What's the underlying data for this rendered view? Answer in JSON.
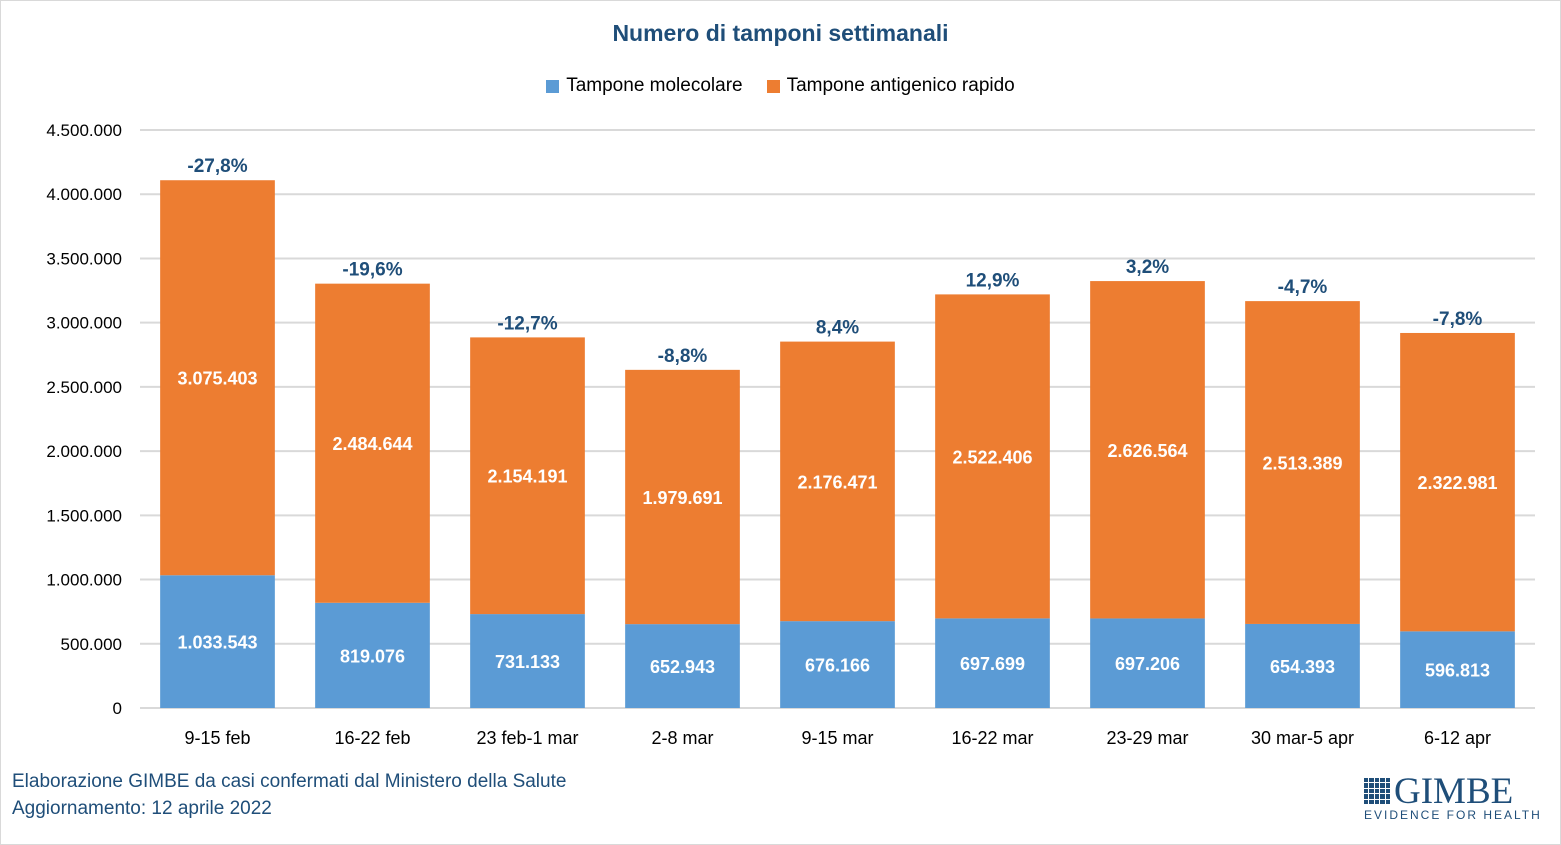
{
  "chart_data": {
    "type": "bar",
    "stacked": true,
    "title": "Numero di tamponi settimanali",
    "xlabel": "",
    "ylabel": "",
    "ylim": [
      0,
      4500000
    ],
    "yticks": [
      0,
      500000,
      1000000,
      1500000,
      2000000,
      2500000,
      3000000,
      3500000,
      4000000,
      4500000
    ],
    "ytick_labels": [
      "0",
      "500.000",
      "1.000.000",
      "1.500.000",
      "2.000.000",
      "2.500.000",
      "3.000.000",
      "3.500.000",
      "4.000.000",
      "4.500.000"
    ],
    "grid": true,
    "legend_position": "top-center",
    "categories": [
      "9-15 feb",
      "16-22 feb",
      "23 feb-1 mar",
      "2-8 mar",
      "9-15 mar",
      "16-22 mar",
      "23-29 mar",
      "30 mar-5 apr",
      "6-12 apr"
    ],
    "series": [
      {
        "name": "Tampone molecolare",
        "color": "#5b9bd5",
        "values": [
          1033543,
          819076,
          731133,
          652943,
          676166,
          697699,
          697206,
          654393,
          596813
        ],
        "labels": [
          "1.033.543",
          "819.076",
          "731.133",
          "652.943",
          "676.166",
          "697.699",
          "697.206",
          "654.393",
          "596.813"
        ]
      },
      {
        "name": "Tampone antigenico rapido",
        "color": "#ed7d31",
        "values": [
          3075403,
          2484644,
          2154191,
          1979691,
          2176471,
          2522406,
          2626564,
          2513389,
          2322981
        ],
        "labels": [
          "3.075.403",
          "2.484.644",
          "2.154.191",
          "1.979.691",
          "2.176.471",
          "2.522.406",
          "2.626.564",
          "2.513.389",
          "2.322.981"
        ]
      }
    ],
    "annotations": {
      "description": "Weekly percentage change in total tests",
      "color": "#1f4e79",
      "values": [
        "-27,8%",
        "-19,6%",
        "-12,7%",
        "-8,8%",
        "8,4%",
        "12,9%",
        "3,2%",
        "-4,7%",
        "-7,8%"
      ]
    }
  },
  "legend": {
    "items": [
      {
        "label": "Tampone molecolare",
        "color": "#5b9bd5"
      },
      {
        "label": "Tampone antigenico rapido",
        "color": "#ed7d31"
      }
    ]
  },
  "footer": {
    "source": "Elaborazione GIMBE da casi confermati dal Ministero della Salute",
    "updated": "Aggiornamento: 12 aprile 2022"
  },
  "logo": {
    "name": "GIMBE",
    "tagline": "EVIDENCE FOR HEALTH"
  },
  "colors": {
    "title": "#1f4e79",
    "grid": "#d9d9d9"
  }
}
